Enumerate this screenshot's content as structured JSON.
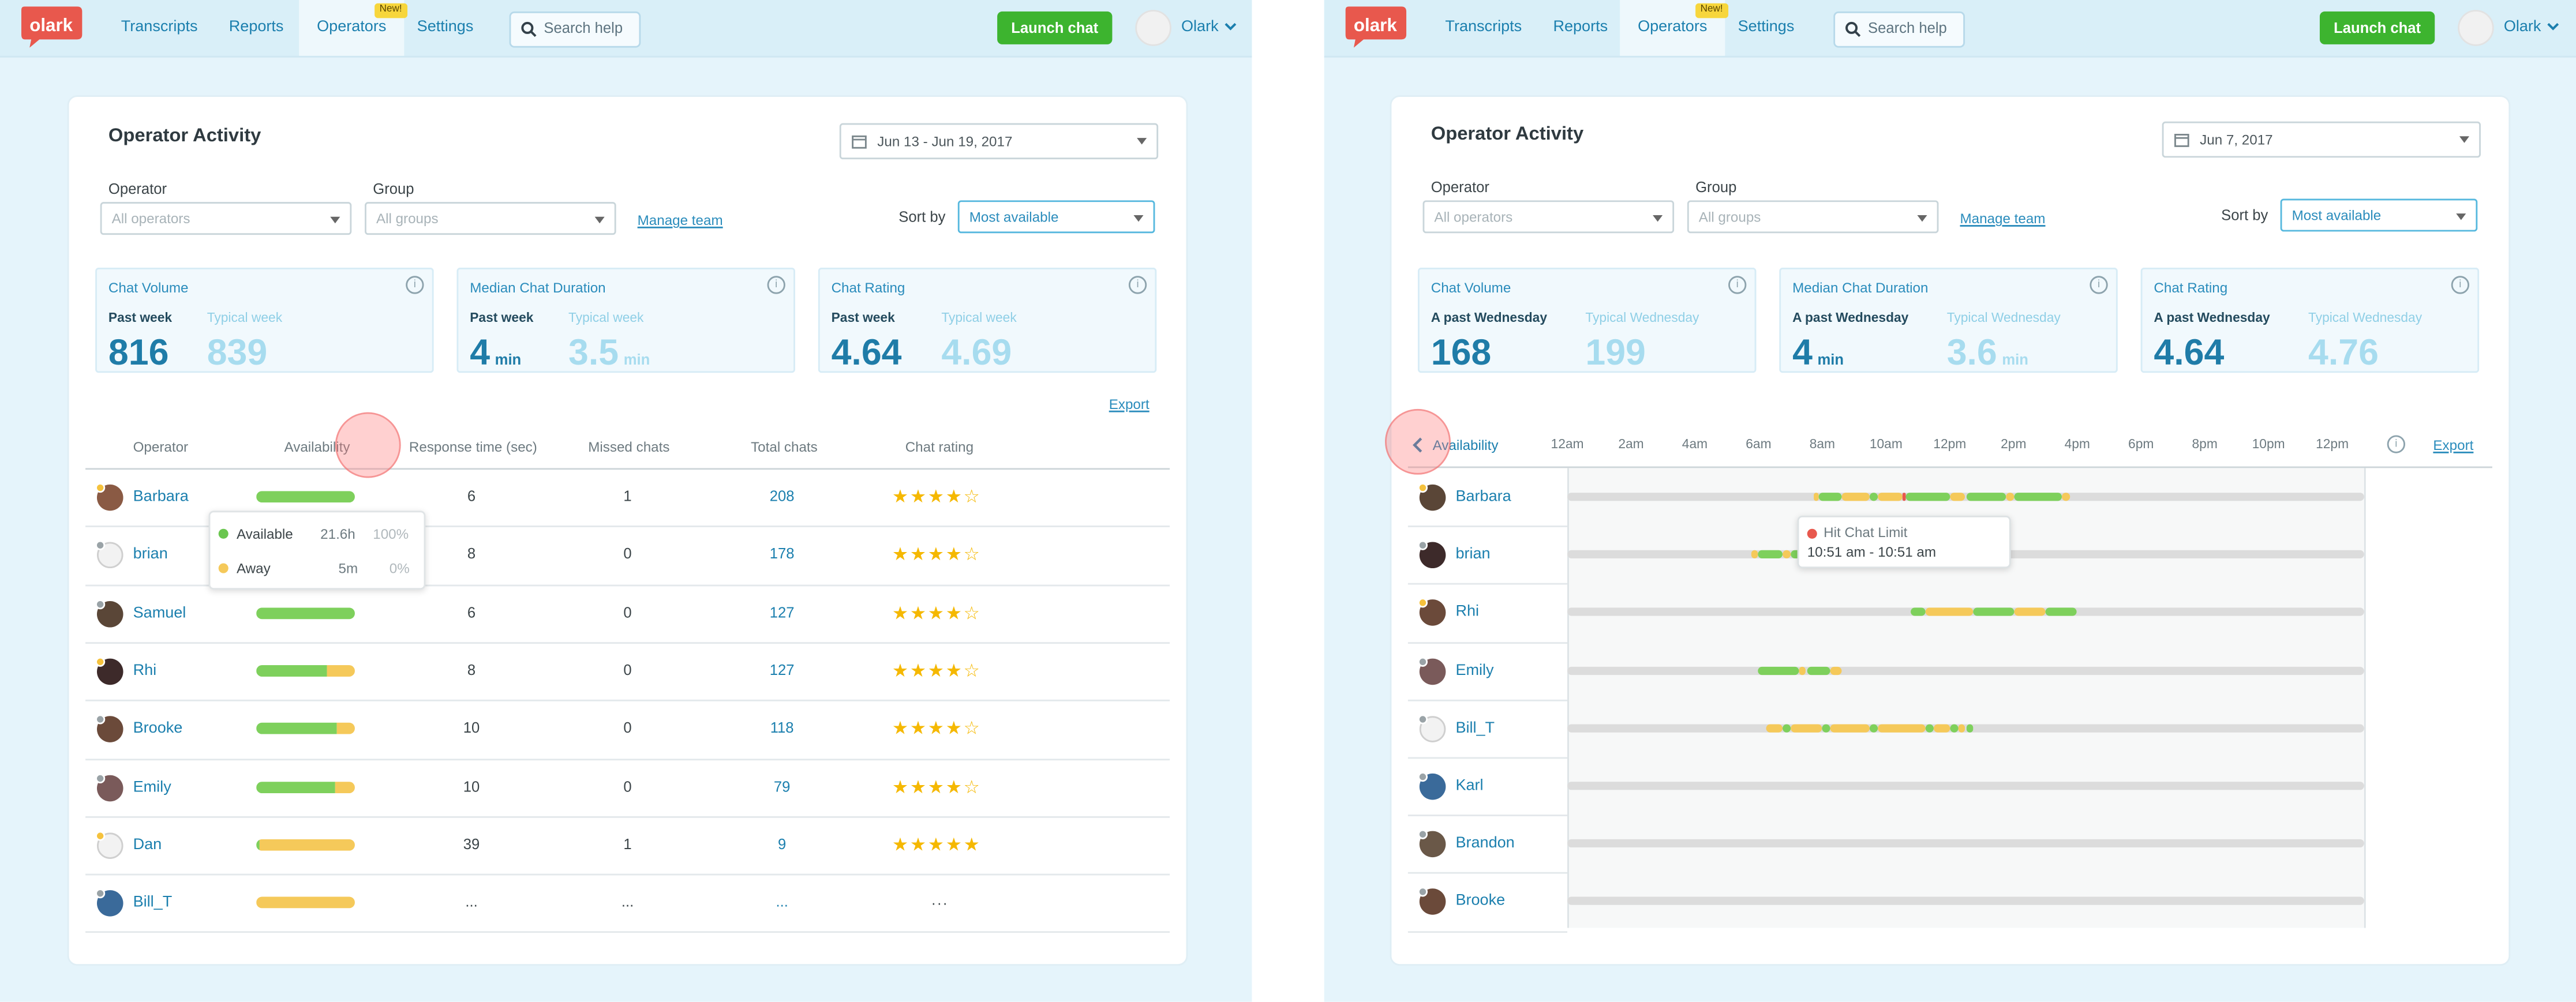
{
  "brand": {
    "logo_text": "olark",
    "accent": "#1b7fae",
    "green": "#7ecf5c",
    "yellow": "#f5c95a",
    "red": "#e8584d"
  },
  "nav": {
    "transcripts": "Transcripts",
    "reports": "Reports",
    "operators": "Operators",
    "new_badge": "New!",
    "settings": "Settings",
    "search_placeholder": "Search help",
    "launch_chat": "Launch chat",
    "user": "Olark"
  },
  "left": {
    "title": "Operator Activity",
    "date_range": "Jun 13 - Jun 19, 2017",
    "filters": {
      "operator_label": "Operator",
      "operator_value": "All operators",
      "group_label": "Group",
      "group_value": "All groups",
      "manage_team": "Manage team",
      "sort_label": "Sort by",
      "sort_value": "Most available"
    },
    "stats": [
      {
        "title": "Chat Volume",
        "past_label": "Past week",
        "typical_label": "Typical week",
        "past_value": "816",
        "typical_value": "839",
        "unit": ""
      },
      {
        "title": "Median Chat Duration",
        "past_label": "Past week",
        "typical_label": "Typical week",
        "past_value": "4",
        "typical_value": "3.5",
        "unit": "min"
      },
      {
        "title": "Chat Rating",
        "past_label": "Past week",
        "typical_label": "Typical week",
        "past_value": "4.64",
        "typical_value": "4.69",
        "unit": ""
      }
    ],
    "export": "Export",
    "columns": {
      "operator": "Operator",
      "availability": "Availability",
      "response_time": "Response time (sec)",
      "missed": "Missed chats",
      "total": "Total chats",
      "rating": "Chat rating"
    },
    "rows": [
      {
        "name": "Barbara",
        "status": "yellow",
        "avail": 1.0,
        "away": 0.0,
        "response": "6",
        "missed": "1",
        "total": "208",
        "rating": 4.5
      },
      {
        "name": "brian",
        "status": "gray",
        "avail": 0.55,
        "away": 0.0,
        "response": "8",
        "missed": "0",
        "total": "178",
        "rating": 4.5
      },
      {
        "name": "Samuel",
        "status": "gray",
        "avail": 1.0,
        "away": 0.0,
        "response": "6",
        "missed": "0",
        "total": "127",
        "rating": 4.5
      },
      {
        "name": "Rhi",
        "status": "yellow",
        "avail": 0.72,
        "away": 0.28,
        "response": "8",
        "missed": "0",
        "total": "127",
        "rating": 4.5
      },
      {
        "name": "Brooke",
        "status": "gray",
        "avail": 0.82,
        "away": 0.18,
        "response": "10",
        "missed": "0",
        "total": "118",
        "rating": 4.5
      },
      {
        "name": "Emily",
        "status": "gray",
        "avail": 0.8,
        "away": 0.2,
        "response": "10",
        "missed": "0",
        "total": "79",
        "rating": 4.5
      },
      {
        "name": "Dan",
        "status": "yellow",
        "avail": 0.04,
        "away": 0.96,
        "response": "39",
        "missed": "1",
        "total": "9",
        "rating": 5
      },
      {
        "name": "Bill_T",
        "status": "gray",
        "avail": 0.0,
        "away": 1.0,
        "response": "...",
        "missed": "...",
        "total": "...",
        "rating": null,
        "rating_text": "..."
      }
    ],
    "tooltip": [
      {
        "label": "Available",
        "time": "21.6h",
        "pct": "100%",
        "color": "#6ac64f"
      },
      {
        "label": "Away",
        "time": "5m",
        "pct": "0%",
        "color": "#f5c95a"
      }
    ]
  },
  "right": {
    "title": "Operator Activity",
    "date": "Jun 7, 2017",
    "filters": {
      "operator_label": "Operator",
      "operator_value": "All operators",
      "group_label": "Group",
      "group_value": "All groups",
      "manage_team": "Manage team",
      "sort_label": "Sort by",
      "sort_value": "Most available"
    },
    "stats": [
      {
        "title": "Chat Volume",
        "past_label": "A past Wednesday",
        "typical_label": "Typical Wednesday",
        "past_value": "168",
        "typical_value": "199",
        "unit": ""
      },
      {
        "title": "Median Chat Duration",
        "past_label": "A past Wednesday",
        "typical_label": "Typical Wednesday",
        "past_value": "4",
        "typical_value": "3.6",
        "unit": "min"
      },
      {
        "title": "Chat Rating",
        "past_label": "A past Wednesday",
        "typical_label": "Typical Wednesday",
        "past_value": "4.64",
        "typical_value": "4.76",
        "unit": ""
      }
    ],
    "availability_label": "Availability",
    "export": "Export",
    "time_labels": [
      "12am",
      "2am",
      "4am",
      "6am",
      "8am",
      "10am",
      "12pm",
      "2pm",
      "4pm",
      "6pm",
      "8pm",
      "10pm",
      "12pm"
    ],
    "rows": [
      {
        "name": "Barbara",
        "status": "yellow",
        "segments": [
          [
            0.31,
            0.315,
            "y"
          ],
          [
            0.315,
            0.345,
            "g"
          ],
          [
            0.345,
            0.38,
            "y"
          ],
          [
            0.38,
            0.39,
            "g"
          ],
          [
            0.39,
            0.42,
            "y"
          ],
          [
            0.42,
            0.425,
            "r"
          ],
          [
            0.425,
            0.48,
            "g"
          ],
          [
            0.48,
            0.5,
            "y"
          ],
          [
            0.5,
            0.55,
            "g"
          ],
          [
            0.55,
            0.56,
            "y"
          ],
          [
            0.56,
            0.62,
            "g"
          ],
          [
            0.62,
            0.63,
            "y"
          ]
        ]
      },
      {
        "name": "brian",
        "status": "gray",
        "segments": [
          [
            0.23,
            0.24,
            "y"
          ],
          [
            0.24,
            0.27,
            "g"
          ],
          [
            0.27,
            0.28,
            "y"
          ],
          [
            0.28,
            0.3,
            "g"
          ],
          [
            0.3,
            0.32,
            "y"
          ]
        ]
      },
      {
        "name": "Rhi",
        "status": "yellow",
        "segments": [
          [
            0.43,
            0.45,
            "g"
          ],
          [
            0.45,
            0.51,
            "y"
          ],
          [
            0.51,
            0.56,
            "g"
          ],
          [
            0.56,
            0.6,
            "y"
          ],
          [
            0.6,
            0.64,
            "g"
          ]
        ]
      },
      {
        "name": "Emily",
        "status": "gray",
        "segments": [
          [
            0.24,
            0.29,
            "g"
          ],
          [
            0.29,
            0.3,
            "y"
          ],
          [
            0.3,
            0.33,
            "g"
          ],
          [
            0.33,
            0.345,
            "y"
          ]
        ]
      },
      {
        "name": "Bill_T",
        "status": "gray",
        "segments": [
          [
            0.25,
            0.27,
            "y"
          ],
          [
            0.27,
            0.28,
            "g"
          ],
          [
            0.28,
            0.32,
            "y"
          ],
          [
            0.32,
            0.33,
            "g"
          ],
          [
            0.33,
            0.38,
            "y"
          ],
          [
            0.38,
            0.39,
            "g"
          ],
          [
            0.39,
            0.45,
            "y"
          ],
          [
            0.45,
            0.46,
            "g"
          ],
          [
            0.46,
            0.48,
            "y"
          ],
          [
            0.48,
            0.49,
            "g"
          ],
          [
            0.49,
            0.5,
            "y"
          ],
          [
            0.5,
            0.51,
            "g"
          ]
        ]
      },
      {
        "name": "Karl",
        "status": "gray",
        "segments": []
      },
      {
        "name": "Brandon",
        "status": "gray",
        "segments": []
      },
      {
        "name": "Brooke",
        "status": "gray",
        "segments": []
      }
    ],
    "tooltip": {
      "title": "Hit Chat Limit",
      "time": "10:51 am - 10:51 am"
    }
  }
}
